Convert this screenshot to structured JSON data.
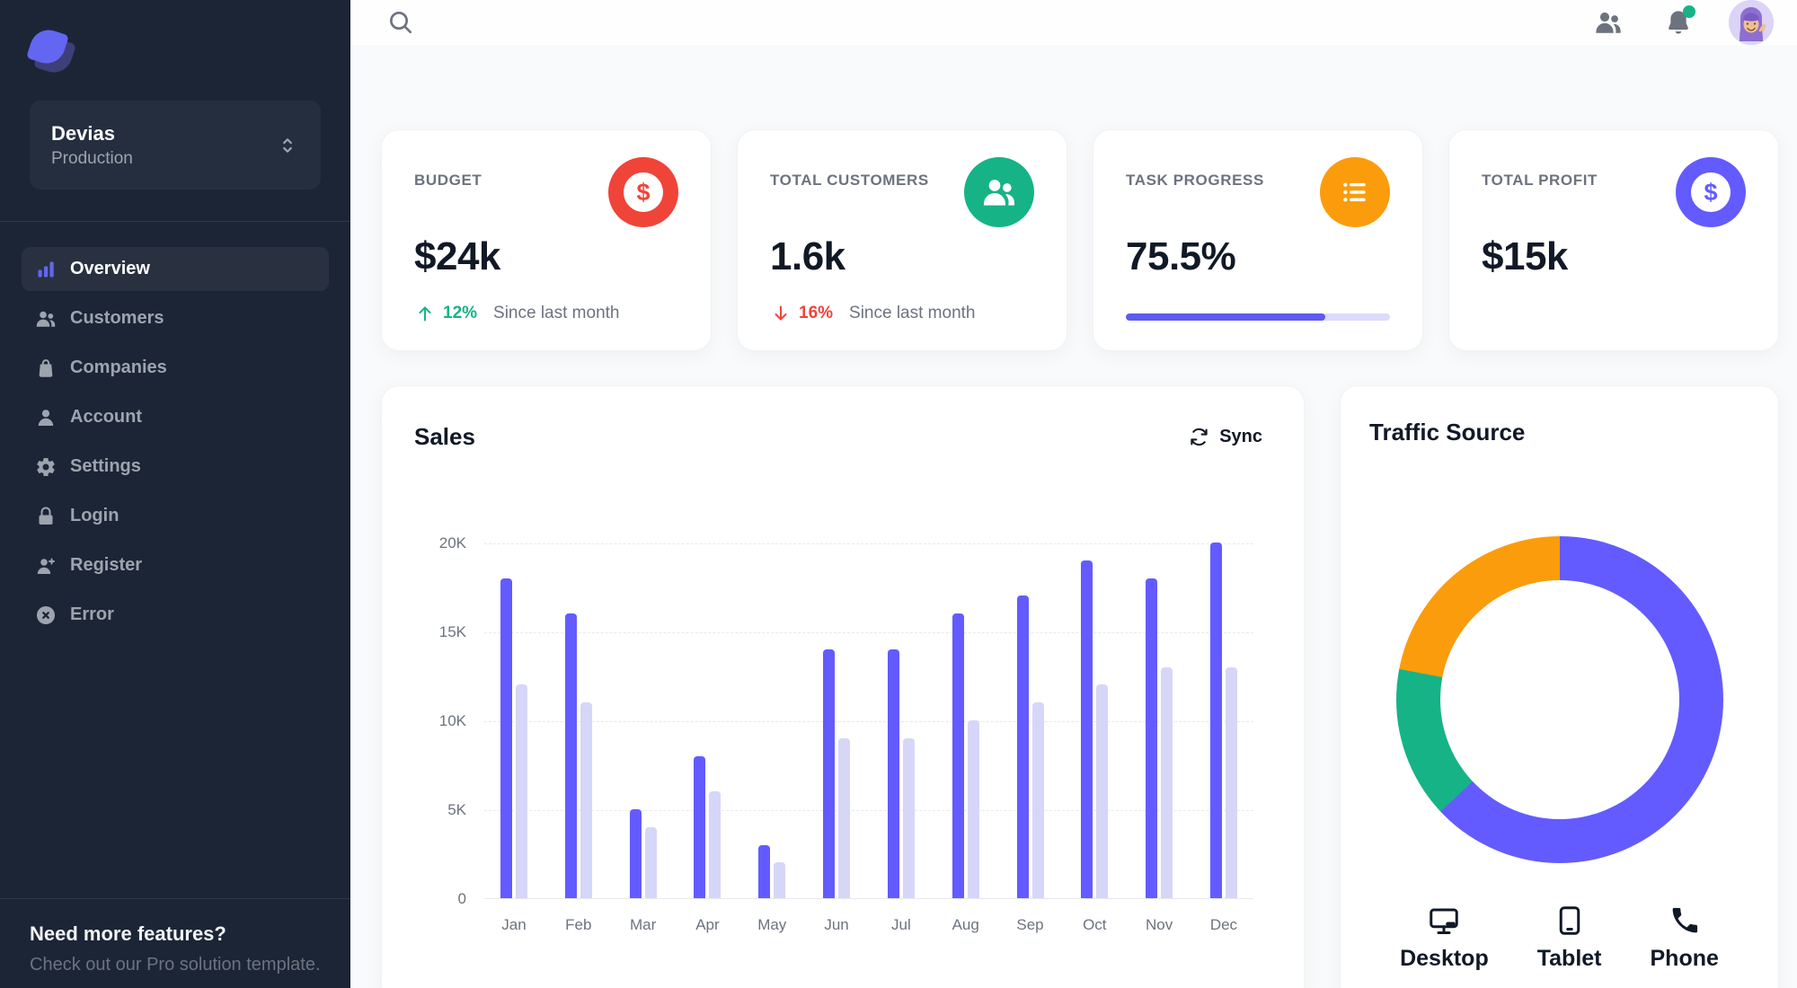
{
  "app": {
    "name": "Devias"
  },
  "colors": {
    "primary": "#635BFF",
    "primary_light": "#D6D6F8",
    "success": "#16B386",
    "error": "#F04438",
    "warning": "#FB9C0C",
    "sidebar_bg": "#1C2536",
    "page_bg": "#F9FAFB",
    "text_primary": "#111927",
    "text_secondary": "#6C737F"
  },
  "sidebar": {
    "workspace": {
      "name": "Devias",
      "environment": "Production"
    },
    "nav_items": [
      {
        "label": "Overview",
        "icon": "chart-bar-icon",
        "active": true
      },
      {
        "label": "Customers",
        "icon": "users-icon",
        "active": false
      },
      {
        "label": "Companies",
        "icon": "shopping-bag-icon",
        "active": false
      },
      {
        "label": "Account",
        "icon": "user-icon",
        "active": false
      },
      {
        "label": "Settings",
        "icon": "gear-icon",
        "active": false
      },
      {
        "label": "Login",
        "icon": "lock-icon",
        "active": false
      },
      {
        "label": "Register",
        "icon": "user-plus-icon",
        "active": false
      },
      {
        "label": "Error",
        "icon": "x-circle-icon",
        "active": false
      }
    ],
    "footer": {
      "title": "Need more features?",
      "subtitle": "Check out our Pro solution template."
    }
  },
  "header": {
    "icons": [
      "search-icon",
      "users-icon",
      "bell-icon",
      "avatar"
    ],
    "notification_dot_color": "#16B386"
  },
  "metrics": {
    "budget": {
      "label": "BUDGET",
      "value": "$24k",
      "icon": "dollar-disc-icon",
      "icon_bg": "#F04438",
      "trend_dir": "up",
      "trend_value": "12%",
      "trend_color": "#16B386",
      "caption": "Since last month"
    },
    "customers": {
      "label": "TOTAL CUSTOMERS",
      "value": "1.6k",
      "icon": "users-icon",
      "icon_bg": "#16B386",
      "trend_dir": "down",
      "trend_value": "16%",
      "trend_color": "#F04438",
      "caption": "Since last month"
    },
    "progress": {
      "label": "TASK PROGRESS",
      "value": "75.5%",
      "icon": "list-icon",
      "icon_bg": "#FB9C0C",
      "progress_pct": 75.5
    },
    "profit": {
      "label": "TOTAL PROFIT",
      "value": "$15k",
      "icon": "dollar-disc-icon",
      "icon_bg": "#635BFF"
    }
  },
  "sales": {
    "title": "Sales",
    "sync_label": "Sync"
  },
  "traffic": {
    "title": "Traffic Source",
    "devices": [
      {
        "label": "Desktop",
        "icon": "desktop-icon"
      },
      {
        "label": "Tablet",
        "icon": "tablet-icon"
      },
      {
        "label": "Phone",
        "icon": "phone-icon"
      }
    ]
  },
  "chart_data": [
    {
      "type": "bar",
      "title": "Sales",
      "categories": [
        "Jan",
        "Feb",
        "Mar",
        "Apr",
        "May",
        "Jun",
        "Jul",
        "Aug",
        "Sep",
        "Oct",
        "Nov",
        "Dec"
      ],
      "series": [
        {
          "name": "primary",
          "color": "#635BFF",
          "values": [
            18,
            16,
            5,
            8,
            3,
            14,
            14,
            16,
            17,
            19,
            18,
            20
          ]
        },
        {
          "name": "secondary",
          "color": "#D6D6F8",
          "values": [
            12,
            11,
            4,
            6,
            2,
            9,
            9,
            10,
            11,
            12,
            13,
            13
          ]
        }
      ],
      "value_unit": "K",
      "ylim": [
        0,
        20
      ],
      "y_ticks_top_to_bottom": [
        "20K",
        "15K",
        "10K",
        "5K",
        "0"
      ],
      "grid": "dashed-horizontal",
      "legend": "none"
    },
    {
      "type": "pie",
      "donut": true,
      "title": "Traffic Source",
      "labels": [
        "Desktop",
        "Tablet",
        "Phone"
      ],
      "values": [
        63,
        15,
        22
      ],
      "colors": [
        "#635BFF",
        "#16B386",
        "#FB9C0C"
      ],
      "start_angle_deg": 0,
      "direction": "clockwise"
    }
  ]
}
